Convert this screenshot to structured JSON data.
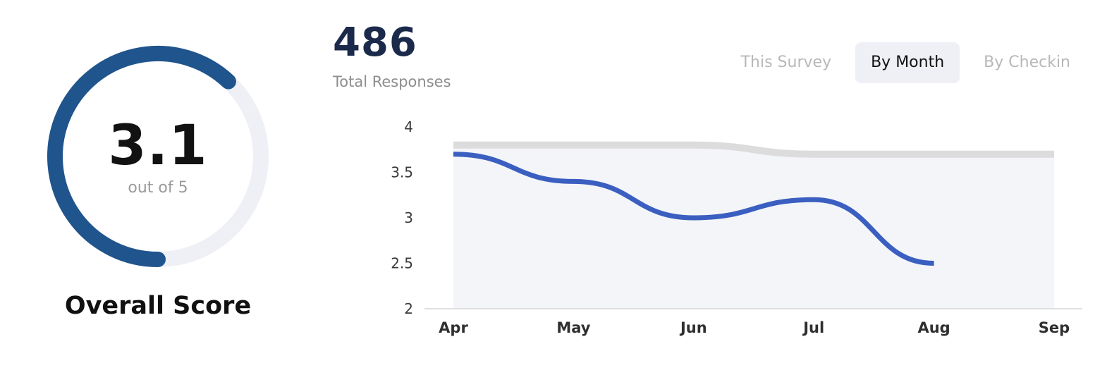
{
  "score": {
    "value": "3.1",
    "max": 5,
    "sub_label": "out of 5",
    "label": "Overall Score",
    "ring_color": "#1f548c",
    "track_color": "#eef0f5"
  },
  "totals": {
    "value": "486",
    "label": "Total Responses"
  },
  "toggle": {
    "items": [
      {
        "label": "This Survey",
        "active": false
      },
      {
        "label": "By Month",
        "active": true
      },
      {
        "label": "By Checkin",
        "active": false
      }
    ]
  },
  "chart_data": {
    "type": "line",
    "x": [
      "Apr",
      "May",
      "Jun",
      "Jul",
      "Aug",
      "Sep"
    ],
    "series": [
      {
        "values": [
          3.7,
          3.4,
          3.0,
          3.2,
          2.5,
          null
        ],
        "color": "#3b5fc0"
      },
      {
        "values": [
          3.8,
          3.8,
          3.8,
          3.7,
          3.7,
          3.7
        ],
        "color": "#dcdcdc"
      }
    ],
    "yticks": [
      "4",
      "3.5",
      "3",
      "2.5",
      "2"
    ],
    "ylim": [
      2,
      4
    ],
    "xlabel": "",
    "ylabel": "",
    "grid": false,
    "band_color": "#f4f5f8"
  }
}
